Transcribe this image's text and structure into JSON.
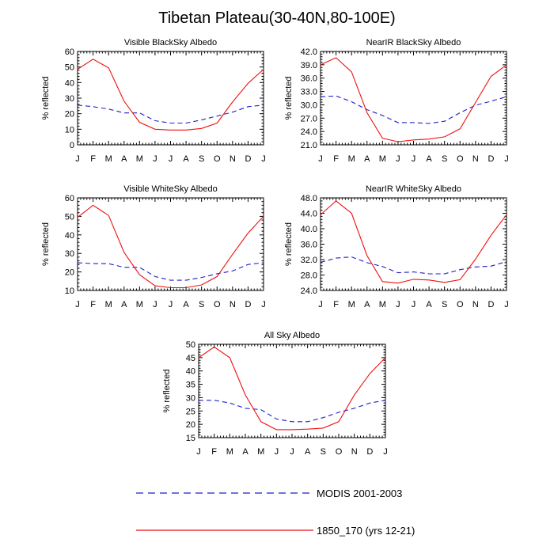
{
  "title": "Tibetan Plateau(30-40N,80-100E)",
  "legend": {
    "modis_label": "MODIS 2001-2003",
    "model_label": "1850_170 (yrs 12-21)",
    "modis_color": "#1f1fcc",
    "model_color": "#ee1111"
  },
  "chart_data": [
    {
      "type": "line",
      "title": "Visible BlackSky Albedo",
      "ylabel": "% reflected",
      "categories": [
        "J",
        "F",
        "M",
        "A",
        "M",
        "J",
        "J",
        "A",
        "S",
        "O",
        "N",
        "D",
        "J"
      ],
      "ylim": [
        0,
        60
      ],
      "yticks": [
        "0",
        "10",
        "20",
        "30",
        "40",
        "50",
        "60"
      ],
      "series": [
        {
          "name": "MODIS 2001-2003",
          "style": "dashed",
          "color": "#1f1fcc",
          "values": [
            25.5,
            24.5,
            23,
            20.5,
            20.5,
            15.5,
            14,
            14,
            16,
            18.5,
            21,
            24.5,
            25.5
          ]
        },
        {
          "name": "1850_170 (yrs 12-21)",
          "style": "solid",
          "color": "#ee1111",
          "values": [
            48.5,
            55,
            49.5,
            28,
            14.5,
            10,
            9.5,
            9.5,
            10.5,
            14,
            27.5,
            39.5,
            48.5
          ]
        }
      ]
    },
    {
      "type": "line",
      "title": "NearIR BlackSky Albedo",
      "ylabel": "% reflected",
      "categories": [
        "J",
        "F",
        "M",
        "A",
        "M",
        "J",
        "J",
        "A",
        "S",
        "O",
        "N",
        "D",
        "J"
      ],
      "ylim": [
        21,
        42
      ],
      "yticks": [
        "21.0",
        "24.0",
        "27.0",
        "30.0",
        "33.0",
        "36.0",
        "39.0",
        "42.0"
      ],
      "series": [
        {
          "name": "MODIS 2001-2003",
          "style": "dashed",
          "color": "#1f1fcc",
          "values": [
            31.8,
            32,
            30.7,
            28.9,
            27.6,
            26,
            26,
            25.8,
            26.3,
            28.2,
            29.9,
            30.8,
            31.8
          ]
        },
        {
          "name": "1850_170 (yrs 12-21)",
          "style": "solid",
          "color": "#ee1111",
          "values": [
            39,
            40.6,
            37.4,
            28.2,
            22.5,
            21.7,
            22.1,
            22.3,
            22.8,
            24.6,
            30.5,
            36.4,
            39
          ]
        }
      ]
    },
    {
      "type": "line",
      "title": "Visible WhiteSky Albedo",
      "ylabel": "% reflected",
      "categories": [
        "J",
        "F",
        "M",
        "A",
        "M",
        "J",
        "J",
        "A",
        "S",
        "O",
        "N",
        "D",
        "J"
      ],
      "ylim": [
        10,
        60
      ],
      "yticks": [
        "10",
        "20",
        "30",
        "40",
        "50",
        "60"
      ],
      "series": [
        {
          "name": "MODIS 2001-2003",
          "style": "dashed",
          "color": "#1f1fcc",
          "values": [
            25,
            24.5,
            24.5,
            22.5,
            22.5,
            17.5,
            15.5,
            15.5,
            17,
            19,
            20.5,
            24,
            25
          ]
        },
        {
          "name": "1850_170 (yrs 12-21)",
          "style": "solid",
          "color": "#ee1111",
          "values": [
            49.5,
            56,
            50.5,
            30.5,
            18.5,
            12.5,
            11.5,
            11.5,
            13,
            17.5,
            29.5,
            41,
            50
          ]
        }
      ]
    },
    {
      "type": "line",
      "title": "NearIR WhiteSky Albedo",
      "ylabel": "% reflected",
      "categories": [
        "J",
        "F",
        "M",
        "A",
        "M",
        "J",
        "J",
        "A",
        "S",
        "O",
        "N",
        "D",
        "J"
      ],
      "ylim": [
        24,
        48
      ],
      "yticks": [
        "24.0",
        "28.0",
        "32.0",
        "36.0",
        "40.0",
        "44.0",
        "48.0"
      ],
      "series": [
        {
          "name": "MODIS 2001-2003",
          "style": "dashed",
          "color": "#1f1fcc",
          "values": [
            31.3,
            32.4,
            32.7,
            31.2,
            30.2,
            28.6,
            28.8,
            28.3,
            28.3,
            29.4,
            30.1,
            30.3,
            31.5
          ]
        },
        {
          "name": "1850_170 (yrs 12-21)",
          "style": "solid",
          "color": "#ee1111",
          "values": [
            43.6,
            47.2,
            44,
            33,
            26.3,
            25.9,
            26.9,
            26.7,
            26.1,
            26.8,
            32.1,
            38.3,
            43.6
          ]
        }
      ]
    },
    {
      "type": "line",
      "title": "All Sky Albedo",
      "ylabel": "% reflected",
      "categories": [
        "J",
        "F",
        "M",
        "A",
        "M",
        "J",
        "J",
        "A",
        "S",
        "O",
        "N",
        "D",
        "J"
      ],
      "ylim": [
        15,
        50
      ],
      "yticks": [
        "15",
        "20",
        "25",
        "30",
        "35",
        "40",
        "45",
        "50"
      ],
      "series": [
        {
          "name": "MODIS 2001-2003",
          "style": "dashed",
          "color": "#1f1fcc",
          "values": [
            29,
            29,
            28,
            26,
            25.5,
            22,
            21,
            21,
            22.5,
            24.5,
            26,
            28,
            29
          ]
        },
        {
          "name": "1850_170 (yrs 12-21)",
          "style": "solid",
          "color": "#ee1111",
          "values": [
            45,
            49,
            45,
            31,
            21,
            18,
            18,
            18.2,
            18.6,
            21,
            31,
            39,
            45
          ]
        }
      ]
    }
  ]
}
